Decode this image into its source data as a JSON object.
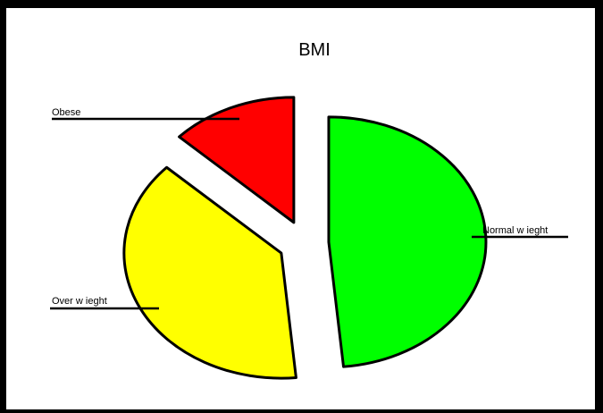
{
  "chart_data": {
    "type": "pie",
    "title": "BMI",
    "exploded": true,
    "slices": [
      {
        "label": "Normal w ieght",
        "value": 48.5,
        "color": "#00ff00"
      },
      {
        "label": "Over w ieght",
        "value": 38.5,
        "color": "#ffff00"
      },
      {
        "label": "Obese",
        "value": 13.0,
        "color": "#ff0000"
      }
    ],
    "labels_position": "outside with leader lines",
    "legend": "none",
    "grid": false
  }
}
